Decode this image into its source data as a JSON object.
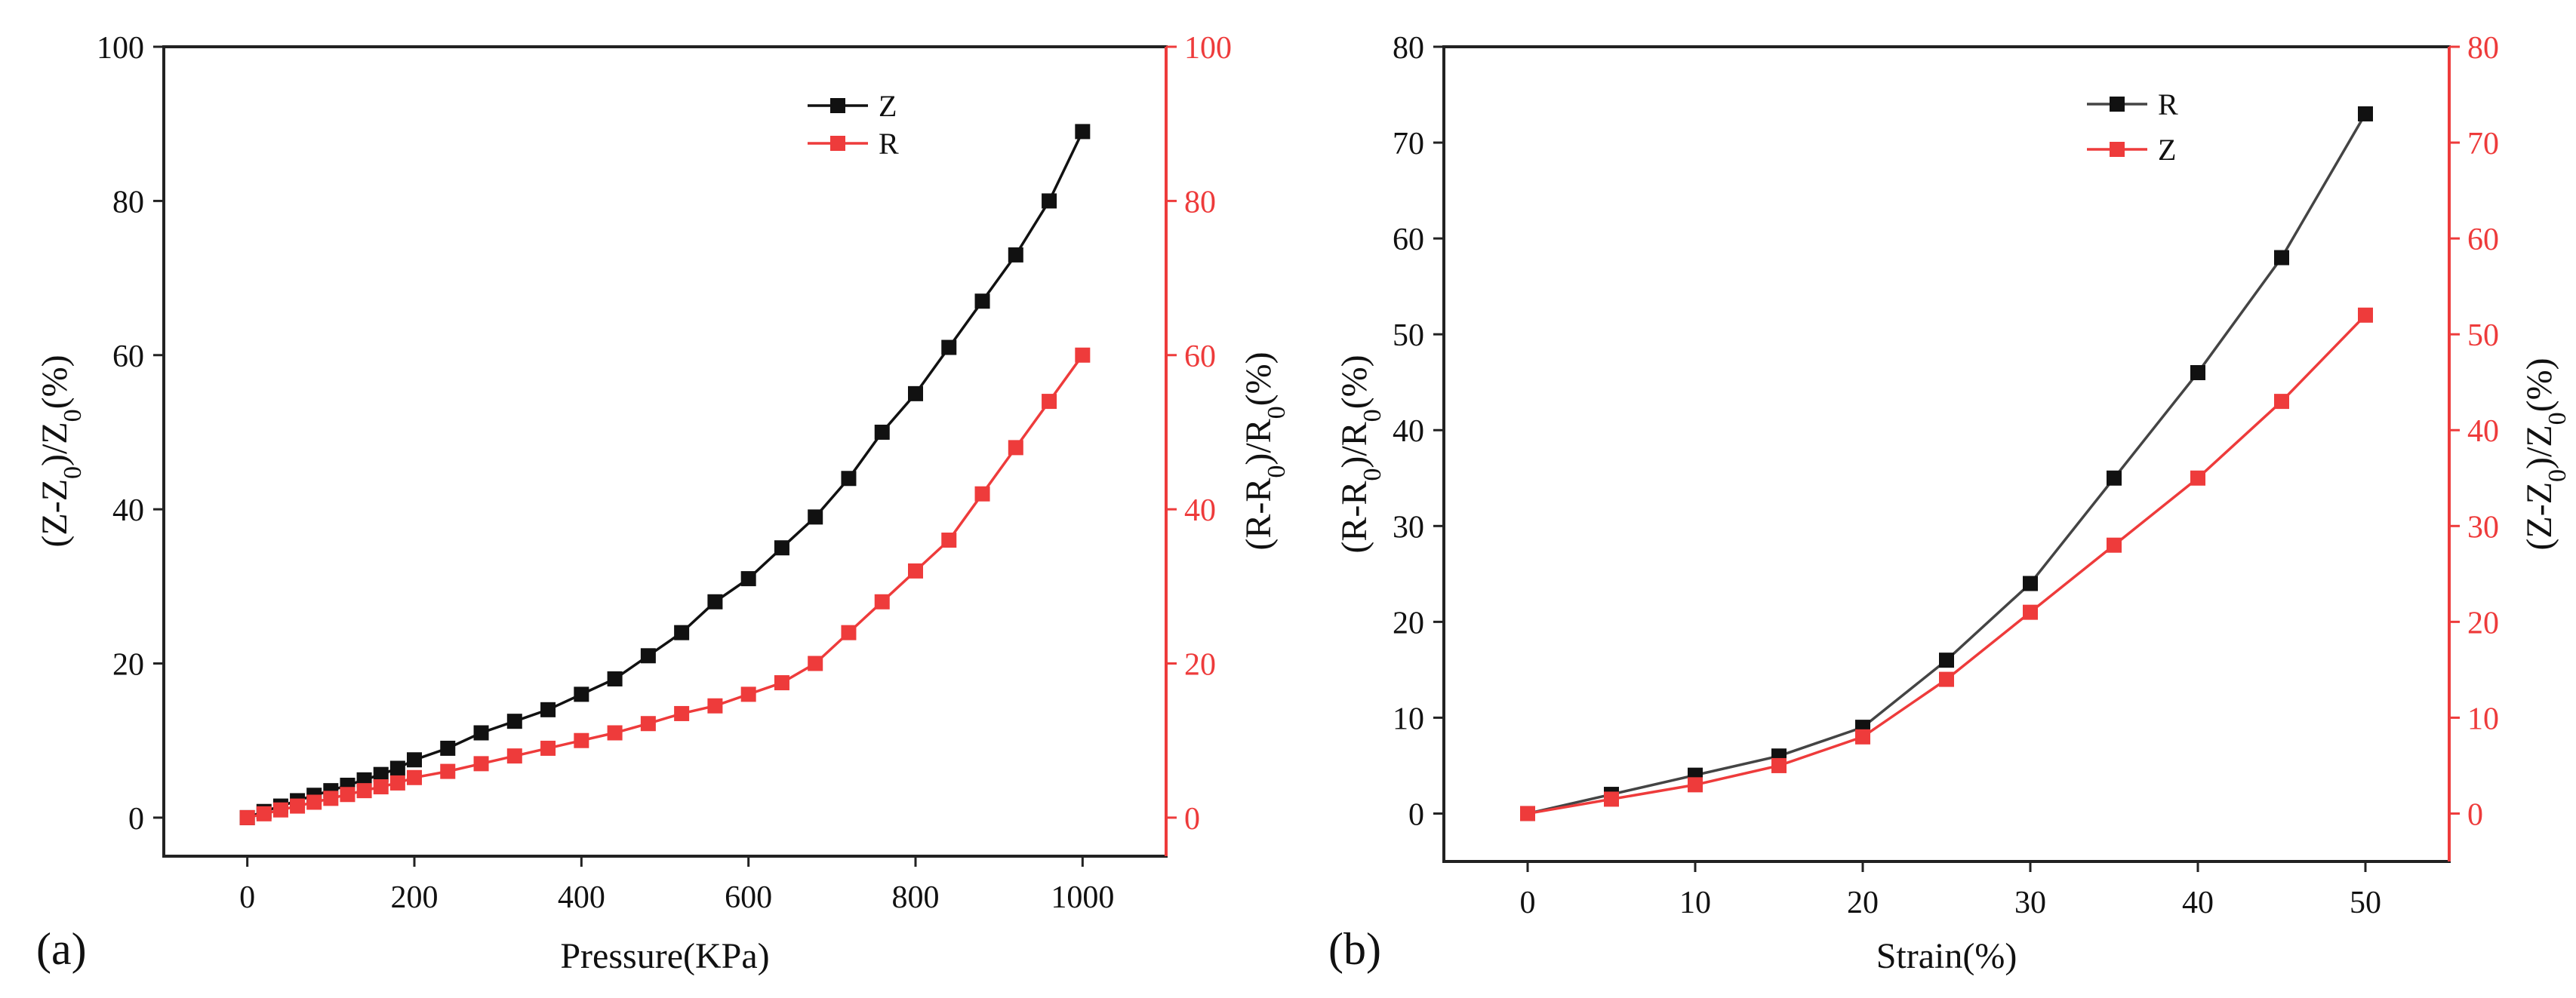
{
  "colors": {
    "black": "#111111",
    "red": "#ee3b3b",
    "axis_black": "#222222",
    "line_gray": "#444444"
  },
  "chart_data": [
    {
      "panel": "(a)",
      "type": "line",
      "xlabel": "Pressure(KPa)",
      "ylabel_left": "(Z-Z0)/Z0(%)",
      "ylabel_right": "(R-R0)/R0(%)",
      "xlim": [
        -100,
        1100
      ],
      "ylim_left": [
        -5,
        100
      ],
      "ylim_right": [
        -5,
        100
      ],
      "xticks": [
        0,
        200,
        400,
        600,
        800,
        1000
      ],
      "yticks_left": [
        0,
        20,
        40,
        60,
        80,
        100
      ],
      "yticks_right": [
        0,
        20,
        40,
        60,
        80,
        100
      ],
      "legend_position": "top-right",
      "series": [
        {
          "name": "Z",
          "axis": "left",
          "color": "#111111",
          "x": [
            0,
            20,
            40,
            60,
            80,
            100,
            120,
            140,
            160,
            180,
            200,
            240,
            280,
            320,
            360,
            400,
            440,
            480,
            520,
            560,
            600,
            640,
            680,
            720,
            760,
            800,
            840,
            880,
            920,
            960,
            1000
          ],
          "y": [
            0,
            0.8,
            1.5,
            2.2,
            2.9,
            3.5,
            4.2,
            4.9,
            5.6,
            6.4,
            7.5,
            9,
            11,
            12.5,
            14,
            16,
            18,
            21,
            24,
            28,
            31,
            35,
            39,
            44,
            50,
            55,
            61,
            67,
            73,
            80,
            89
          ]
        },
        {
          "name": "R",
          "axis": "right",
          "color": "#ee3b3b",
          "x": [
            0,
            20,
            40,
            60,
            80,
            100,
            120,
            140,
            160,
            180,
            200,
            240,
            280,
            320,
            360,
            400,
            440,
            480,
            520,
            560,
            600,
            640,
            680,
            720,
            760,
            800,
            840,
            880,
            920,
            960,
            1000
          ],
          "y": [
            0,
            0.5,
            1,
            1.5,
            2,
            2.5,
            3,
            3.5,
            4,
            4.5,
            5.2,
            6,
            7,
            8,
            9,
            10,
            11,
            12.2,
            13.5,
            14.5,
            16,
            17.5,
            20,
            24,
            28,
            32,
            36,
            42,
            48,
            54,
            60
          ]
        }
      ]
    },
    {
      "panel": "(b)",
      "type": "line",
      "xlabel": "Strain(%)",
      "ylabel_left": "(R-R0)/R0(%)",
      "ylabel_right": "(Z-Z0)/Z0(%)",
      "xlim": [
        -5,
        55
      ],
      "ylim_left": [
        -5,
        80
      ],
      "ylim_right": [
        -5,
        80
      ],
      "xticks": [
        0,
        10,
        20,
        30,
        40,
        50
      ],
      "yticks_left": [
        0,
        10,
        20,
        30,
        40,
        50,
        60,
        70,
        80
      ],
      "yticks_right": [
        0,
        10,
        20,
        30,
        40,
        50,
        60,
        70,
        80
      ],
      "legend_position": "top-right",
      "series": [
        {
          "name": "R",
          "axis": "left",
          "color": "#111111",
          "x": [
            0,
            5,
            10,
            15,
            20,
            25,
            30,
            35,
            40,
            45,
            50
          ],
          "y": [
            0,
            2,
            4,
            6,
            9,
            16,
            24,
            35,
            46,
            58,
            73
          ]
        },
        {
          "name": "Z",
          "axis": "right",
          "color": "#ee3b3b",
          "x": [
            0,
            5,
            10,
            15,
            20,
            25,
            30,
            35,
            40,
            45,
            50
          ],
          "y": [
            0,
            1.5,
            3,
            5,
            8,
            14,
            21,
            28,
            35,
            43,
            52
          ]
        }
      ]
    }
  ]
}
